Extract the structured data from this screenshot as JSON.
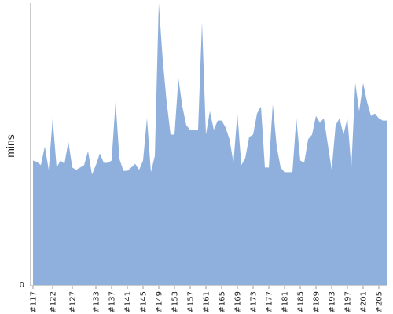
{
  "chart_data": {
    "type": "area",
    "title": "",
    "xlabel": "",
    "ylabel": "mins",
    "ylim": [
      0,
      60
    ],
    "y_ticks": [
      0
    ],
    "x_tick_labels": [
      "#117",
      "#122",
      "#127",
      "#133",
      "#137",
      "#141",
      "#145",
      "#149",
      "#153",
      "#157",
      "#161",
      "#165",
      "#169",
      "#173",
      "#177",
      "#181",
      "#185",
      "#189",
      "#193",
      "#197",
      "#201",
      "#205"
    ],
    "x": [
      117,
      118,
      119,
      120,
      121,
      122,
      123,
      124,
      125,
      126,
      127,
      128,
      129,
      130,
      131,
      132,
      133,
      134,
      135,
      136,
      137,
      138,
      139,
      140,
      141,
      142,
      143,
      144,
      145,
      146,
      147,
      148,
      149,
      150,
      151,
      152,
      153,
      154,
      155,
      156,
      157,
      158,
      159,
      160,
      161,
      162,
      163,
      164,
      165,
      166,
      167,
      168,
      169,
      170,
      171,
      172,
      173,
      174,
      175,
      176,
      177,
      178,
      179,
      180,
      181,
      182,
      183,
      184,
      185,
      186,
      187,
      188,
      189,
      190,
      191,
      192,
      193,
      194,
      195,
      196,
      197,
      198,
      199,
      200,
      201,
      202,
      203,
      204,
      205,
      206,
      207
    ],
    "values": [
      26.5,
      26.2,
      25.5,
      29.5,
      24.5,
      35.5,
      25.0,
      26.5,
      25.8,
      30.5,
      25.0,
      24.5,
      25.0,
      25.5,
      28.5,
      23.5,
      25.5,
      28.0,
      26.0,
      26.0,
      26.5,
      39.0,
      26.8,
      24.3,
      24.3,
      25.0,
      25.8,
      24.5,
      26.5,
      35.5,
      24.0,
      27.5,
      60.0,
      48.0,
      39.0,
      32.0,
      32.0,
      44.0,
      38.0,
      34.0,
      33.0,
      33.0,
      33.0,
      56.0,
      32.0,
      37.0,
      33.0,
      35.0,
      35.0,
      33.5,
      31.0,
      26.0,
      36.5,
      25.5,
      27.0,
      31.5,
      32.0,
      36.5,
      38.0,
      25.0,
      25.0,
      38.5,
      29.5,
      25.0,
      24.0,
      24.0,
      24.0,
      35.5,
      26.5,
      26.0,
      31.0,
      32.0,
      36.0,
      34.5,
      35.5,
      30.0,
      24.5,
      34.0,
      35.5,
      32.0,
      35.5,
      25.0,
      43.0,
      37.0,
      43.0,
      39.0,
      36.0,
      36.5,
      35.5,
      35.0,
      35.0
    ],
    "series": [
      {
        "name": "",
        "color": "#8fb0dc"
      }
    ],
    "grid": false,
    "legend": "none"
  }
}
